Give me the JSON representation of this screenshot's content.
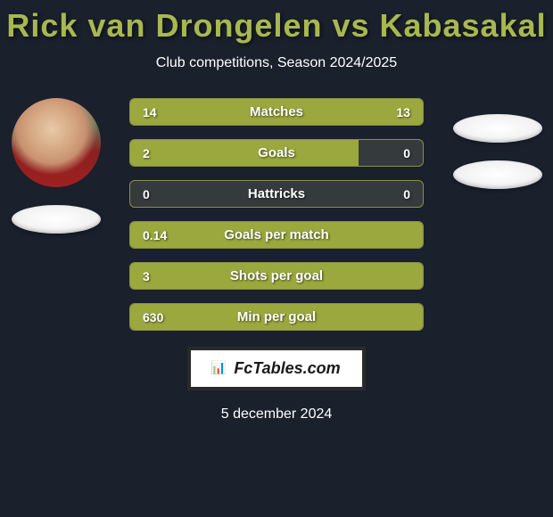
{
  "header": {
    "title": "Rick van Drongelen vs Kabasakal",
    "subtitle": "Club competitions, Season 2024/2025"
  },
  "colors": {
    "background": "#1a202c",
    "title_color": "#a8b850",
    "text_color": "#ffffff",
    "bar_fill": "#9ba83e",
    "bar_bg": "#353a3c",
    "bar_border": "#8a9040",
    "logo_bg": "#ffffff",
    "logo_border": "#2a2a2a"
  },
  "stats": [
    {
      "label": "Matches",
      "left_value": "14",
      "right_value": "13",
      "left_width_pct": 52,
      "right_width_pct": 48,
      "full": false
    },
    {
      "label": "Goals",
      "left_value": "2",
      "right_value": "0",
      "left_width_pct": 78,
      "right_width_pct": 0,
      "full": false
    },
    {
      "label": "Hattricks",
      "left_value": "0",
      "right_value": "0",
      "left_width_pct": 0,
      "right_width_pct": 0,
      "full": false
    },
    {
      "label": "Goals per match",
      "left_value": "0.14",
      "right_value": "",
      "left_width_pct": 100,
      "right_width_pct": 0,
      "full": true
    },
    {
      "label": "Shots per goal",
      "left_value": "3",
      "right_value": "",
      "left_width_pct": 100,
      "right_width_pct": 0,
      "full": true
    },
    {
      "label": "Min per goal",
      "left_value": "630",
      "right_value": "",
      "left_width_pct": 100,
      "right_width_pct": 0,
      "full": true
    }
  ],
  "footer": {
    "logo_text": "FcTables.com",
    "date": "5 december 2024"
  }
}
